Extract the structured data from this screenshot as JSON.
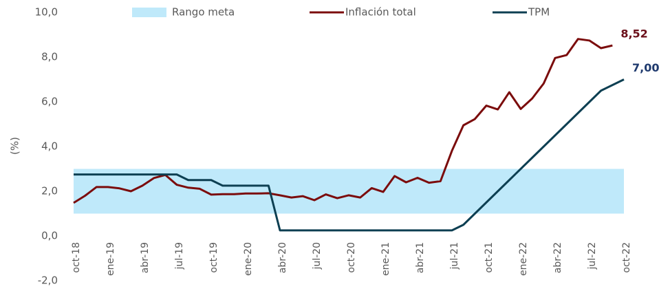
{
  "chart_data": {
    "type": "line",
    "y_axis_label": "(%)",
    "categories": [
      "oct-18",
      null,
      null,
      "ene-19",
      null,
      null,
      "abr-19",
      null,
      null,
      "jul-19",
      null,
      null,
      "oct-19",
      null,
      null,
      "ene-20",
      null,
      null,
      "abr-20",
      null,
      null,
      "jul-20",
      null,
      null,
      "oct-20",
      null,
      null,
      "ene-21",
      null,
      null,
      "abr-21",
      null,
      null,
      "jul-21",
      null,
      null,
      "oct-21",
      null,
      null,
      "ene-22",
      null,
      null,
      "abr-22",
      null,
      null,
      "jul-22",
      null,
      null,
      "oct-22"
    ],
    "target_band": {
      "name": "Rango meta",
      "color": "#bfe9fa",
      "range": [
        1,
        3
      ]
    },
    "series": [
      {
        "name": "Inflación total",
        "color": "#7b0c0c",
        "values": [
          1.48,
          1.8,
          2.19,
          2.19,
          2.13,
          2.0,
          2.25,
          2.59,
          2.73,
          2.29,
          2.16,
          2.11,
          1.85,
          1.87,
          1.87,
          1.9,
          1.9,
          1.91,
          1.82,
          1.72,
          1.78,
          1.6,
          1.86,
          1.69,
          1.82,
          1.72,
          2.14,
          1.97,
          2.68,
          2.4,
          2.6,
          2.38,
          2.45,
          3.81,
          4.95,
          5.23,
          5.83,
          5.66,
          6.43,
          5.68,
          6.15,
          6.82,
          7.96,
          8.09,
          8.81,
          8.74,
          8.4,
          8.52,
          null
        ],
        "value_labels": [
          null,
          null,
          null,
          null,
          null,
          null,
          null,
          null,
          null,
          null,
          null,
          null,
          null,
          null,
          null,
          null,
          null,
          null,
          null,
          null,
          null,
          null,
          null,
          null,
          null,
          null,
          null,
          null,
          null,
          null,
          null,
          null,
          null,
          null,
          null,
          null,
          null,
          null,
          null,
          null,
          null,
          null,
          null,
          null,
          null,
          null,
          null,
          "8,52",
          null
        ],
        "label_color": "#6b0f1a"
      },
      {
        "name": "TPM",
        "color": "#0d3f52",
        "values": [
          2.75,
          2.75,
          2.75,
          2.75,
          2.75,
          2.75,
          2.75,
          2.75,
          2.75,
          2.75,
          2.5,
          2.5,
          2.5,
          2.25,
          2.25,
          2.25,
          2.25,
          2.25,
          0.25,
          0.25,
          0.25,
          0.25,
          0.25,
          0.25,
          0.25,
          0.25,
          0.25,
          0.25,
          0.25,
          0.25,
          0.25,
          0.25,
          0.25,
          0.25,
          0.5,
          1.0,
          1.5,
          2.0,
          2.5,
          3.0,
          3.5,
          4.0,
          4.5,
          5.0,
          5.5,
          6.0,
          6.5,
          6.75,
          7.0
        ],
        "value_labels": [
          null,
          null,
          null,
          null,
          null,
          null,
          null,
          null,
          null,
          null,
          null,
          null,
          null,
          null,
          null,
          null,
          null,
          null,
          null,
          null,
          null,
          null,
          null,
          null,
          null,
          null,
          null,
          null,
          null,
          null,
          null,
          null,
          null,
          null,
          null,
          null,
          null,
          null,
          null,
          null,
          null,
          null,
          null,
          null,
          null,
          null,
          null,
          null,
          "7,00"
        ],
        "label_color": "#1f3a6e"
      }
    ],
    "ylim": [
      -2,
      10
    ],
    "yticks": [
      {
        "value": -2,
        "label": "-2,0"
      },
      {
        "value": 0,
        "label": "0,0"
      },
      {
        "value": 2,
        "label": "2,0"
      },
      {
        "value": 4,
        "label": "4,0"
      },
      {
        "value": 6,
        "label": "6,0"
      },
      {
        "value": 8,
        "label": "8,0"
      },
      {
        "value": 10,
        "label": "10,0"
      }
    ],
    "grid": false
  }
}
